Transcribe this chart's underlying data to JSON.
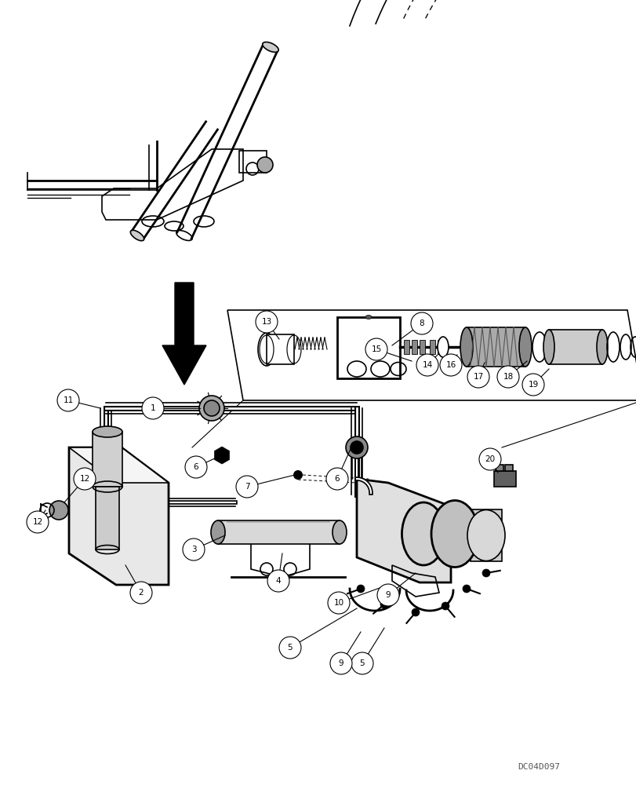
{
  "background_color": "#ffffff",
  "footnote": "DC04D097",
  "lw": 1.2,
  "lw_thick": 2.0,
  "label_r": 0.018,
  "label_fontsize": 7.5
}
